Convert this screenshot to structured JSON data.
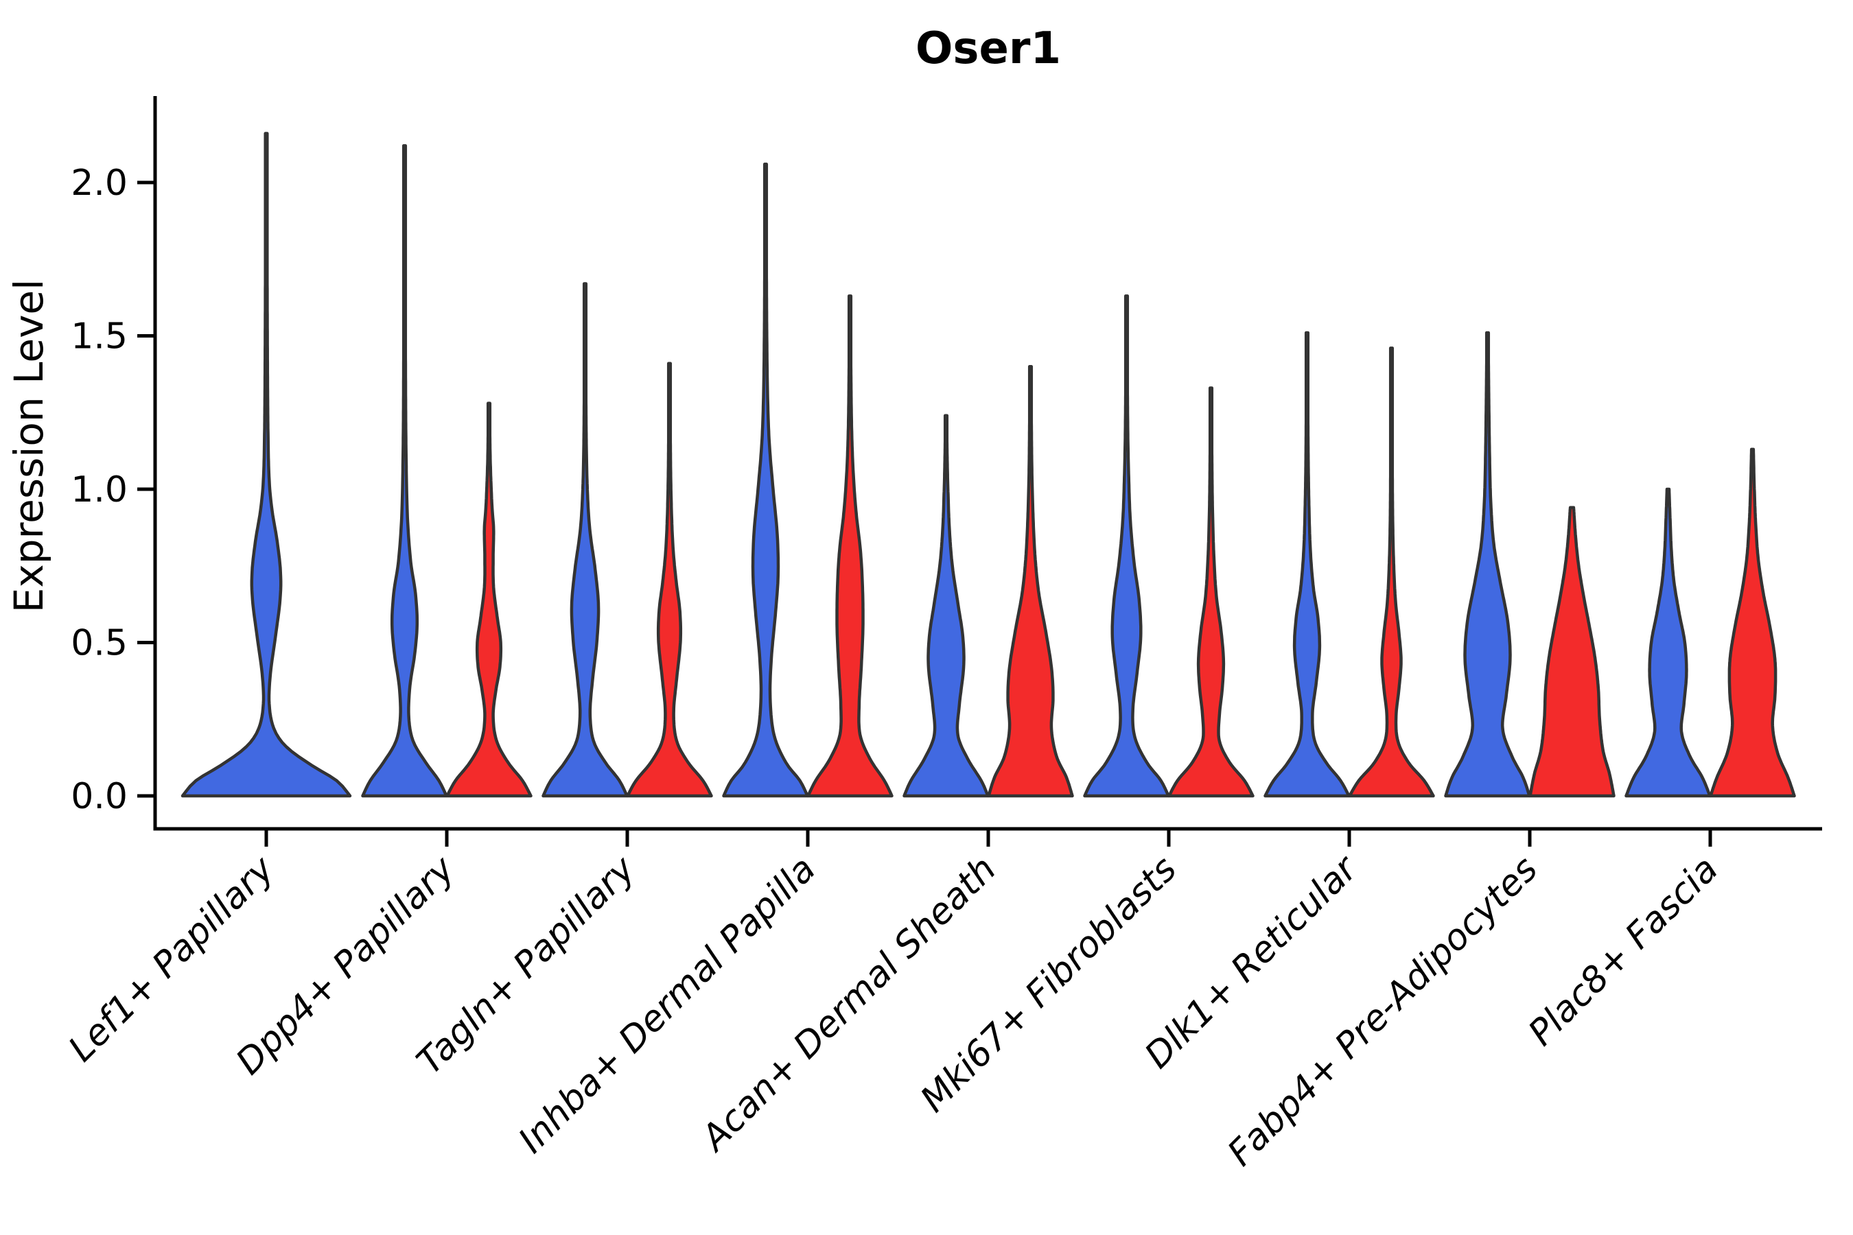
{
  "chart_data": {
    "type": "violin",
    "title": "Oser1",
    "ylabel": "Expression Level",
    "xlabel": "",
    "ylim": [
      -0.11,
      2.27
    ],
    "grid": false,
    "legend": "none",
    "y_ticks": [
      "0.0",
      "0.5",
      "1.0",
      "1.5",
      "2.0"
    ],
    "y_tick_values": [
      0,
      0.5,
      1.0,
      1.5,
      2.0
    ],
    "x_tick_rotation": 45,
    "categories": [
      "Lef1+ Papillary",
      "Dpp4+ Papillary",
      "Tagln+ Papillary",
      "Inhba+ Dermal Papilla",
      "Acan+ Dermal Sheath",
      "Mki67+ Fibroblasts",
      "Dlk1+ Reticular",
      "Fabp4+ Pre-Adipocytes",
      "Plac8+ Fascia"
    ],
    "series": [
      {
        "key": "blue",
        "color": "#4169E1"
      },
      {
        "key": "red",
        "color": "#F32B2B"
      }
    ],
    "outline_color": "#333333",
    "axis_color": "#000000",
    "violins": [
      {
        "category_index": 0,
        "category": "Lef1+ Papillary",
        "split": "blue",
        "offset": 0,
        "width_scale": 2,
        "max": 2.16,
        "profile": [
          [
            0,
            1.0
          ],
          [
            0.05,
            0.84
          ],
          [
            0.1,
            0.54
          ],
          [
            0.16,
            0.24
          ],
          [
            0.22,
            0.09
          ],
          [
            0.3,
            0.035
          ],
          [
            0.4,
            0.05
          ],
          [
            0.52,
            0.11
          ],
          [
            0.64,
            0.165
          ],
          [
            0.73,
            0.17
          ],
          [
            0.83,
            0.13
          ],
          [
            0.93,
            0.07
          ],
          [
            1.03,
            0.035
          ],
          [
            1.2,
            0.02
          ],
          [
            1.5,
            0.013
          ],
          [
            1.8,
            0.01
          ],
          [
            2.16,
            0.008
          ]
        ]
      },
      {
        "category_index": 1,
        "category": "Dpp4+ Papillary",
        "split": "blue",
        "offset": -1,
        "width_scale": 1,
        "max": 2.12,
        "profile": [
          [
            0,
            1.0
          ],
          [
            0.05,
            0.82
          ],
          [
            0.11,
            0.5
          ],
          [
            0.18,
            0.2
          ],
          [
            0.26,
            0.1
          ],
          [
            0.36,
            0.13
          ],
          [
            0.46,
            0.24
          ],
          [
            0.56,
            0.3
          ],
          [
            0.66,
            0.26
          ],
          [
            0.76,
            0.15
          ],
          [
            0.88,
            0.08
          ],
          [
            1.0,
            0.05
          ],
          [
            1.2,
            0.03
          ],
          [
            1.5,
            0.02
          ],
          [
            1.8,
            0.015
          ],
          [
            2.12,
            0.012
          ]
        ]
      },
      {
        "category_index": 1,
        "category": "Dpp4+ Papillary",
        "split": "red",
        "offset": 1,
        "width_scale": 1,
        "max": 1.28,
        "profile": [
          [
            0,
            1.0
          ],
          [
            0.05,
            0.8
          ],
          [
            0.11,
            0.45
          ],
          [
            0.18,
            0.18
          ],
          [
            0.26,
            0.1
          ],
          [
            0.34,
            0.16
          ],
          [
            0.42,
            0.26
          ],
          [
            0.5,
            0.28
          ],
          [
            0.58,
            0.2
          ],
          [
            0.68,
            0.11
          ],
          [
            0.78,
            0.1
          ],
          [
            0.87,
            0.11
          ],
          [
            0.95,
            0.07
          ],
          [
            1.1,
            0.03
          ],
          [
            1.28,
            0.014
          ]
        ]
      },
      {
        "category_index": 2,
        "category": "Tagln+ Papillary",
        "split": "blue",
        "offset": -1,
        "width_scale": 1,
        "max": 1.67,
        "profile": [
          [
            0,
            1.0
          ],
          [
            0.05,
            0.82
          ],
          [
            0.11,
            0.48
          ],
          [
            0.18,
            0.2
          ],
          [
            0.27,
            0.12
          ],
          [
            0.38,
            0.18
          ],
          [
            0.5,
            0.28
          ],
          [
            0.62,
            0.32
          ],
          [
            0.74,
            0.24
          ],
          [
            0.86,
            0.12
          ],
          [
            0.98,
            0.06
          ],
          [
            1.15,
            0.03
          ],
          [
            1.4,
            0.018
          ],
          [
            1.67,
            0.012
          ]
        ]
      },
      {
        "category_index": 2,
        "category": "Tagln+ Papillary",
        "split": "red",
        "offset": 1,
        "width_scale": 1,
        "max": 1.41,
        "profile": [
          [
            0,
            1.0
          ],
          [
            0.05,
            0.8
          ],
          [
            0.11,
            0.44
          ],
          [
            0.18,
            0.17
          ],
          [
            0.27,
            0.1
          ],
          [
            0.38,
            0.17
          ],
          [
            0.5,
            0.26
          ],
          [
            0.6,
            0.25
          ],
          [
            0.7,
            0.16
          ],
          [
            0.8,
            0.09
          ],
          [
            0.92,
            0.05
          ],
          [
            1.1,
            0.025
          ],
          [
            1.41,
            0.013
          ]
        ]
      },
      {
        "category_index": 3,
        "category": "Inhba+ Dermal Papilla",
        "split": "blue",
        "offset": -1,
        "width_scale": 1,
        "max": 2.06,
        "profile": [
          [
            0,
            1.0
          ],
          [
            0.05,
            0.82
          ],
          [
            0.11,
            0.48
          ],
          [
            0.2,
            0.2
          ],
          [
            0.32,
            0.11
          ],
          [
            0.45,
            0.14
          ],
          [
            0.6,
            0.24
          ],
          [
            0.72,
            0.3
          ],
          [
            0.85,
            0.28
          ],
          [
            1.0,
            0.18
          ],
          [
            1.15,
            0.09
          ],
          [
            1.3,
            0.05
          ],
          [
            1.5,
            0.03
          ],
          [
            1.75,
            0.02
          ],
          [
            2.06,
            0.013
          ]
        ]
      },
      {
        "category_index": 3,
        "category": "Inhba+ Dermal Papilla",
        "split": "red",
        "offset": 1,
        "width_scale": 1,
        "max": 1.63,
        "profile": [
          [
            0,
            1.0
          ],
          [
            0.05,
            0.82
          ],
          [
            0.12,
            0.48
          ],
          [
            0.2,
            0.24
          ],
          [
            0.3,
            0.22
          ],
          [
            0.42,
            0.27
          ],
          [
            0.55,
            0.31
          ],
          [
            0.68,
            0.3
          ],
          [
            0.8,
            0.25
          ],
          [
            0.92,
            0.15
          ],
          [
            1.05,
            0.08
          ],
          [
            1.2,
            0.04
          ],
          [
            1.4,
            0.022
          ],
          [
            1.63,
            0.013
          ]
        ]
      },
      {
        "category_index": 4,
        "category": "Acan+ Dermal Sheath",
        "split": "blue",
        "offset": -1,
        "width_scale": 1,
        "max": 1.24,
        "profile": [
          [
            0,
            1.0
          ],
          [
            0.05,
            0.84
          ],
          [
            0.12,
            0.52
          ],
          [
            0.2,
            0.28
          ],
          [
            0.3,
            0.32
          ],
          [
            0.42,
            0.42
          ],
          [
            0.52,
            0.4
          ],
          [
            0.63,
            0.28
          ],
          [
            0.75,
            0.15
          ],
          [
            0.87,
            0.08
          ],
          [
            1.0,
            0.045
          ],
          [
            1.12,
            0.025
          ],
          [
            1.24,
            0.015
          ]
        ]
      },
      {
        "category_index": 4,
        "category": "Acan+ Dermal Sheath",
        "split": "red",
        "offset": 1,
        "width_scale": 1,
        "max": 1.4,
        "profile": [
          [
            0,
            1.0
          ],
          [
            0.06,
            0.86
          ],
          [
            0.13,
            0.62
          ],
          [
            0.22,
            0.5
          ],
          [
            0.32,
            0.54
          ],
          [
            0.42,
            0.5
          ],
          [
            0.54,
            0.36
          ],
          [
            0.66,
            0.2
          ],
          [
            0.78,
            0.11
          ],
          [
            0.92,
            0.06
          ],
          [
            1.1,
            0.03
          ],
          [
            1.4,
            0.013
          ]
        ]
      },
      {
        "category_index": 5,
        "category": "Mki67+ Fibroblasts",
        "split": "blue",
        "offset": -1,
        "width_scale": 1,
        "max": 1.63,
        "profile": [
          [
            0,
            1.0
          ],
          [
            0.05,
            0.82
          ],
          [
            0.11,
            0.48
          ],
          [
            0.19,
            0.2
          ],
          [
            0.28,
            0.15
          ],
          [
            0.4,
            0.25
          ],
          [
            0.52,
            0.34
          ],
          [
            0.64,
            0.3
          ],
          [
            0.76,
            0.18
          ],
          [
            0.9,
            0.09
          ],
          [
            1.05,
            0.05
          ],
          [
            1.25,
            0.025
          ],
          [
            1.63,
            0.012
          ]
        ]
      },
      {
        "category_index": 5,
        "category": "Mki67+ Fibroblasts",
        "split": "red",
        "offset": 1,
        "width_scale": 1,
        "max": 1.33,
        "profile": [
          [
            0,
            1.0
          ],
          [
            0.05,
            0.8
          ],
          [
            0.11,
            0.44
          ],
          [
            0.18,
            0.2
          ],
          [
            0.26,
            0.2
          ],
          [
            0.35,
            0.27
          ],
          [
            0.44,
            0.3
          ],
          [
            0.54,
            0.24
          ],
          [
            0.65,
            0.13
          ],
          [
            0.78,
            0.07
          ],
          [
            0.95,
            0.035
          ],
          [
            1.15,
            0.02
          ],
          [
            1.33,
            0.012
          ]
        ]
      },
      {
        "category_index": 6,
        "category": "Dlk1+ Reticular",
        "split": "blue",
        "offset": -1,
        "width_scale": 1,
        "max": 1.51,
        "profile": [
          [
            0,
            1.0
          ],
          [
            0.05,
            0.8
          ],
          [
            0.11,
            0.45
          ],
          [
            0.18,
            0.18
          ],
          [
            0.27,
            0.13
          ],
          [
            0.37,
            0.22
          ],
          [
            0.48,
            0.3
          ],
          [
            0.58,
            0.26
          ],
          [
            0.68,
            0.15
          ],
          [
            0.8,
            0.08
          ],
          [
            0.95,
            0.045
          ],
          [
            1.15,
            0.025
          ],
          [
            1.51,
            0.012
          ]
        ]
      },
      {
        "category_index": 6,
        "category": "Dlk1+ Reticular",
        "split": "red",
        "offset": 1,
        "width_scale": 1,
        "max": 1.46,
        "profile": [
          [
            0,
            1.0
          ],
          [
            0.05,
            0.78
          ],
          [
            0.11,
            0.4
          ],
          [
            0.18,
            0.15
          ],
          [
            0.26,
            0.11
          ],
          [
            0.35,
            0.18
          ],
          [
            0.44,
            0.23
          ],
          [
            0.53,
            0.18
          ],
          [
            0.63,
            0.1
          ],
          [
            0.75,
            0.055
          ],
          [
            0.9,
            0.03
          ],
          [
            1.1,
            0.02
          ],
          [
            1.46,
            0.012
          ]
        ]
      },
      {
        "category_index": 7,
        "category": "Fabp4+ Pre-Adipocytes",
        "split": "blue",
        "offset": -1,
        "width_scale": 1,
        "max": 1.51,
        "profile": [
          [
            0,
            1.0
          ],
          [
            0.06,
            0.85
          ],
          [
            0.13,
            0.58
          ],
          [
            0.22,
            0.36
          ],
          [
            0.33,
            0.45
          ],
          [
            0.45,
            0.54
          ],
          [
            0.57,
            0.48
          ],
          [
            0.7,
            0.3
          ],
          [
            0.82,
            0.15
          ],
          [
            0.95,
            0.08
          ],
          [
            1.1,
            0.05
          ],
          [
            1.3,
            0.03
          ],
          [
            1.51,
            0.015
          ]
        ]
      },
      {
        "category_index": 7,
        "category": "Fabp4+ Pre-Adipocytes",
        "split": "red",
        "offset": 1,
        "width_scale": 1,
        "max": 0.94,
        "profile": [
          [
            0,
            1.0
          ],
          [
            0.07,
            0.9
          ],
          [
            0.15,
            0.74
          ],
          [
            0.25,
            0.66
          ],
          [
            0.35,
            0.63
          ],
          [
            0.45,
            0.55
          ],
          [
            0.55,
            0.42
          ],
          [
            0.65,
            0.28
          ],
          [
            0.75,
            0.16
          ],
          [
            0.84,
            0.09
          ],
          [
            0.94,
            0.04
          ]
        ]
      },
      {
        "category_index": 8,
        "category": "Plac8+ Fascia",
        "split": "blue",
        "offset": -1,
        "width_scale": 1,
        "max": 1.0,
        "profile": [
          [
            0,
            1.0
          ],
          [
            0.06,
            0.82
          ],
          [
            0.13,
            0.52
          ],
          [
            0.21,
            0.32
          ],
          [
            0.3,
            0.38
          ],
          [
            0.4,
            0.44
          ],
          [
            0.5,
            0.4
          ],
          [
            0.6,
            0.26
          ],
          [
            0.7,
            0.14
          ],
          [
            0.8,
            0.08
          ],
          [
            0.9,
            0.05
          ],
          [
            1.0,
            0.025
          ]
        ]
      },
      {
        "category_index": 8,
        "category": "Plac8+ Fascia",
        "split": "red",
        "offset": 1,
        "width_scale": 1,
        "max": 1.13,
        "profile": [
          [
            0,
            1.0
          ],
          [
            0.06,
            0.85
          ],
          [
            0.14,
            0.6
          ],
          [
            0.23,
            0.48
          ],
          [
            0.33,
            0.54
          ],
          [
            0.44,
            0.54
          ],
          [
            0.55,
            0.42
          ],
          [
            0.66,
            0.26
          ],
          [
            0.77,
            0.14
          ],
          [
            0.88,
            0.08
          ],
          [
            1.0,
            0.045
          ],
          [
            1.13,
            0.022
          ]
        ]
      }
    ]
  }
}
